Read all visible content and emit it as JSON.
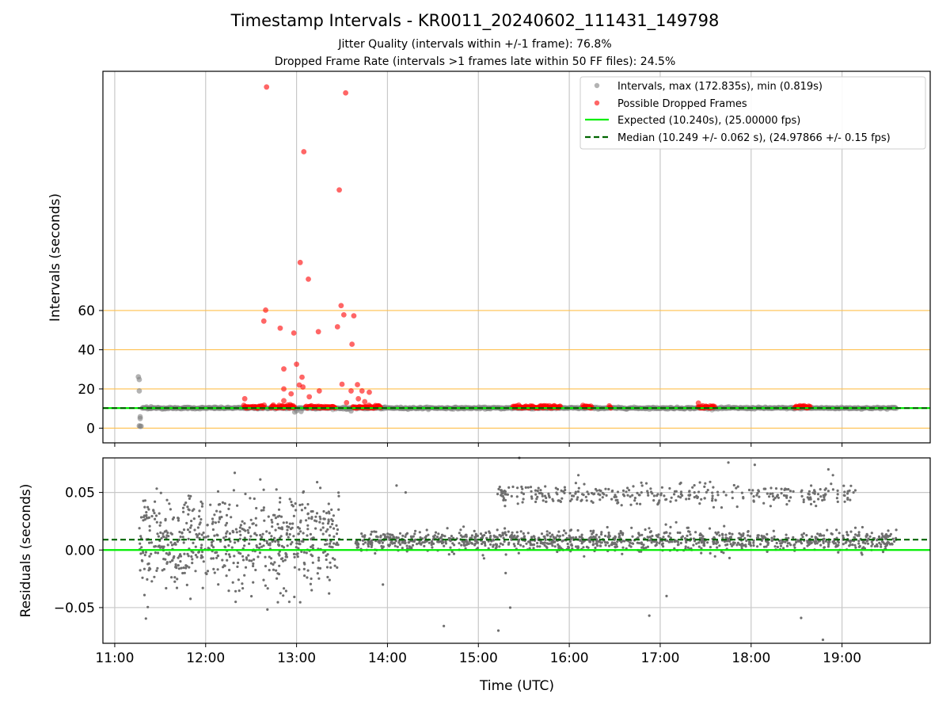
{
  "title": "Timestamp Intervals - KR0011_20240602_111431_149798",
  "subtitle_lines": [
    "Jitter Quality (intervals within +/-1 frame): 76.8%",
    "Dropped Frame Rate (intervals >1 frames late within 50 FF files): 24.5%"
  ],
  "colors": {
    "intervals": "#808080",
    "dropped": "#ff0000",
    "expected": "#00ee00",
    "median": "#006400",
    "threshold_lines": "#ffc04d",
    "grid": "#c8c8c8",
    "residuals": "#6e6e6e"
  },
  "chart_data": [
    {
      "type": "scatter",
      "ylabel": "Intervals (seconds)",
      "xlim": [
        10.87,
        19.97
      ],
      "ylim": [
        -7.5,
        182
      ],
      "yticks": [
        0,
        20,
        40,
        60
      ],
      "ytick_labels": [
        "0",
        "20",
        "40",
        "60"
      ],
      "threshold_lines": [
        0,
        20,
        40,
        60
      ],
      "grid": "x",
      "legend_position": "upper right",
      "legend": [
        "Intervals, max (172.835s), min (0.819s)",
        "Possible Dropped Frames",
        "Expected (10.240s), (25.00000 fps)",
        "Median (10.249 +/- 0.062 s), (24.97866 +/- 0.15 fps)"
      ],
      "expected_value": 10.24,
      "median_value": 10.249,
      "intervals_points": [
        [
          11.26,
          26.2
        ],
        [
          11.27,
          24.8
        ],
        [
          11.27,
          19.0
        ],
        [
          11.28,
          5.8
        ],
        [
          11.28,
          4.9
        ],
        [
          11.27,
          1.2
        ],
        [
          11.28,
          0.9
        ],
        [
          11.29,
          1.0
        ],
        [
          11.35,
          10.8
        ],
        [
          11.4,
          10.9
        ],
        [
          11.8,
          10.6
        ],
        [
          12.1,
          10.7
        ],
        [
          12.55,
          10.9
        ],
        [
          12.98,
          8.2
        ],
        [
          13.0,
          8.9
        ],
        [
          13.05,
          8.5
        ],
        [
          13.55,
          9.6
        ],
        [
          13.6,
          8.8
        ]
      ],
      "intervals_band": [
        11.3,
        19.6,
        10.25
      ],
      "dropped_points": [
        [
          12.67,
          174.0
        ],
        [
          13.54,
          171.0
        ],
        [
          13.08,
          141.0
        ],
        [
          13.47,
          121.5
        ],
        [
          13.04,
          84.5
        ],
        [
          13.13,
          76.0
        ],
        [
          12.66,
          60.2
        ],
        [
          12.64,
          54.6
        ],
        [
          12.82,
          51.0
        ],
        [
          12.97,
          48.5
        ],
        [
          13.24,
          49.2
        ],
        [
          13.45,
          51.7
        ],
        [
          13.49,
          62.5
        ],
        [
          13.52,
          57.8
        ],
        [
          13.63,
          57.3
        ],
        [
          13.61,
          42.8
        ],
        [
          12.86,
          30.2
        ],
        [
          13.0,
          32.6
        ],
        [
          13.06,
          26.0
        ],
        [
          12.86,
          20.0
        ],
        [
          12.94,
          17.5
        ],
        [
          13.03,
          22.0
        ],
        [
          13.07,
          21.0
        ],
        [
          13.14,
          16.0
        ],
        [
          13.25,
          19.0
        ],
        [
          13.5,
          22.4
        ],
        [
          13.6,
          19.0
        ],
        [
          13.67,
          22.2
        ],
        [
          13.72,
          19.0
        ],
        [
          13.8,
          18.3
        ],
        [
          13.55,
          13.0
        ],
        [
          13.68,
          15.0
        ],
        [
          13.75,
          13.5
        ],
        [
          12.43,
          15.0
        ],
        [
          12.86,
          14.0
        ],
        [
          12.93,
          12.0
        ],
        [
          17.42,
          12.8
        ]
      ],
      "dropped_clusters": [
        [
          12.42,
          12.65
        ],
        [
          12.72,
          12.98
        ],
        [
          13.1,
          13.42
        ],
        [
          13.62,
          13.93
        ],
        [
          15.38,
          15.9
        ],
        [
          16.15,
          16.25
        ],
        [
          16.44,
          16.46
        ],
        [
          17.42,
          17.6
        ],
        [
          18.48,
          18.65
        ]
      ]
    },
    {
      "type": "scatter",
      "xlabel": "Time (UTC)",
      "ylabel": "Residuals (seconds)",
      "xlim": [
        10.87,
        19.97
      ],
      "ylim": [
        -0.081,
        0.08
      ],
      "yticks": [
        -0.05,
        0.0,
        0.05
      ],
      "ytick_labels": [
        "−0.05",
        "0.00",
        "0.05"
      ],
      "xticks": [
        11,
        12,
        13,
        14,
        15,
        16,
        17,
        18,
        19
      ],
      "xtick_labels": [
        "11:00",
        "12:00",
        "13:00",
        "14:00",
        "15:00",
        "16:00",
        "17:00",
        "18:00",
        "19:00"
      ],
      "grid": "both",
      "expected_line": 0.0,
      "median_line": 0.009,
      "residual_groups": [
        {
          "x_range": [
            11.27,
            13.47
          ],
          "center": 0.007,
          "spread": 0.02,
          "count": 650
        },
        {
          "x_range": [
            13.65,
            19.6
          ],
          "center": 0.008,
          "spread": 0.0045,
          "count": 1100
        },
        {
          "x_range": [
            15.2,
            19.15
          ],
          "center": 0.048,
          "spread": 0.0045,
          "count": 330
        }
      ],
      "residual_outliers": [
        [
          12.32,
          0.067
        ],
        [
          12.33,
          -0.045
        ],
        [
          12.92,
          -0.045
        ],
        [
          14.1,
          0.056
        ],
        [
          14.2,
          0.05
        ],
        [
          14.62,
          -0.066
        ],
        [
          15.22,
          -0.07
        ],
        [
          15.35,
          -0.05
        ],
        [
          15.45,
          0.08
        ],
        [
          16.1,
          0.065
        ],
        [
          16.88,
          -0.057
        ],
        [
          17.07,
          -0.04
        ],
        [
          17.75,
          0.076
        ],
        [
          18.04,
          0.074
        ],
        [
          18.55,
          -0.059
        ],
        [
          18.79,
          -0.078
        ],
        [
          18.85,
          0.07
        ],
        [
          18.9,
          0.065
        ],
        [
          13.95,
          -0.03
        ],
        [
          15.3,
          -0.02
        ]
      ]
    }
  ]
}
